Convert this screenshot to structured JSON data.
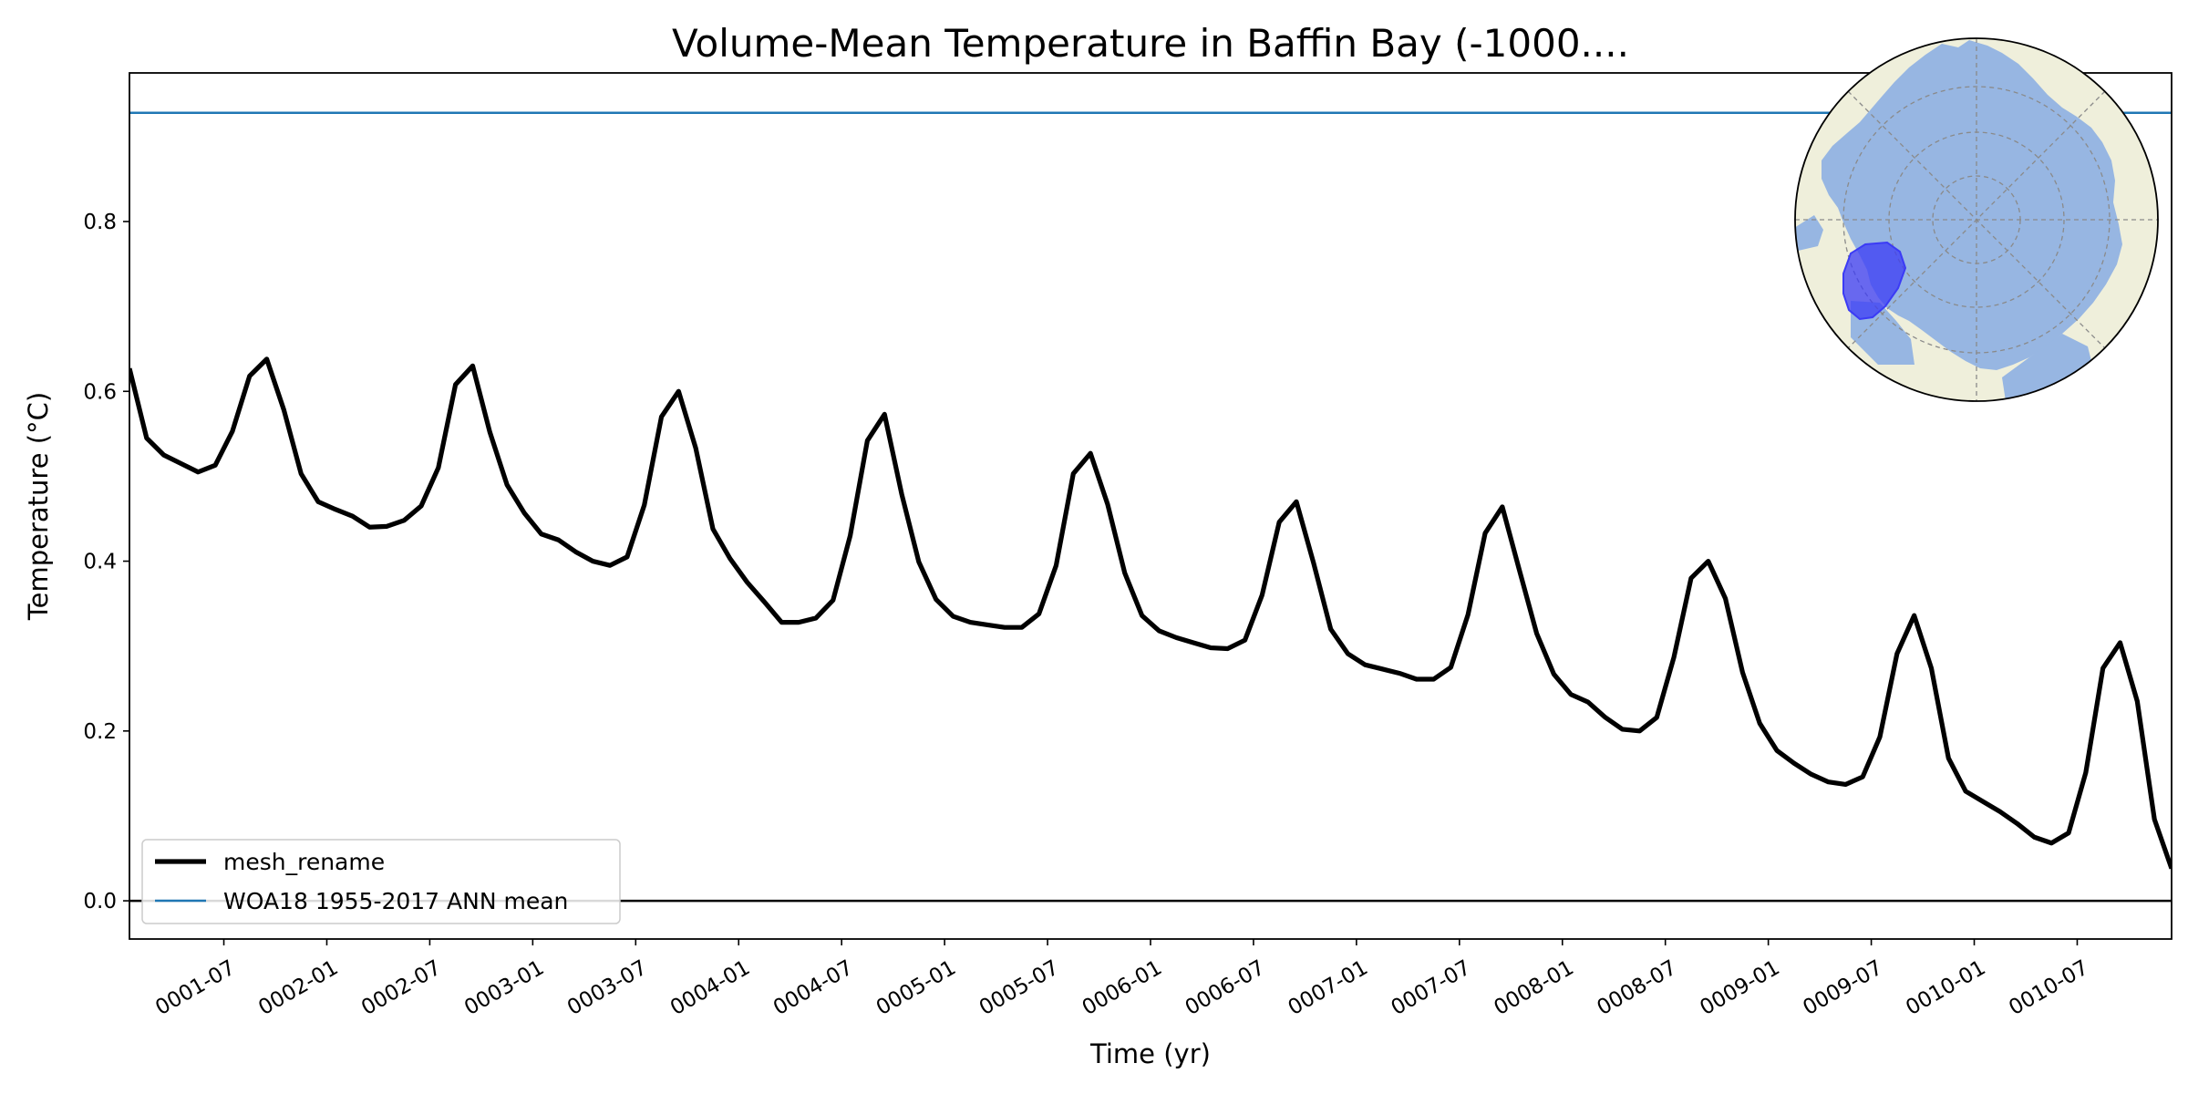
{
  "chart_data": {
    "type": "line",
    "title": "Volume-Mean Temperature in Baffin Bay (-1000....",
    "xlabel": "Time (yr)",
    "ylabel": "Temperature (°C)",
    "ylim": [
      -0.045,
      0.975
    ],
    "xlim": [
      0,
      119
    ],
    "yticks": [
      0.0,
      0.2,
      0.4,
      0.6,
      0.8
    ],
    "ytick_labels": [
      "0.0",
      "0.2",
      "0.4",
      "0.6",
      "0.8"
    ],
    "xticks": [
      5.5,
      11.5,
      17.5,
      23.5,
      29.5,
      35.5,
      41.5,
      47.5,
      53.5,
      59.5,
      65.5,
      71.5,
      77.5,
      83.5,
      89.5,
      95.5,
      101.5,
      107.5,
      113.5
    ],
    "xtick_labels": [
      "0001-07",
      "0002-01",
      "0002-07",
      "0003-01",
      "0003-07",
      "0004-01",
      "0004-07",
      "0005-01",
      "0005-07",
      "0006-01",
      "0006-07",
      "0007-01",
      "0007-07",
      "0008-01",
      "0008-07",
      "0009-01",
      "0009-07",
      "0010-01",
      "0010-07"
    ],
    "series": [
      {
        "name": "mesh_rename",
        "color": "#000000",
        "values": [
          0.627,
          0.545,
          0.525,
          0.515,
          0.505,
          0.513,
          0.553,
          0.618,
          0.638,
          0.578,
          0.503,
          0.47,
          0.461,
          0.453,
          0.44,
          0.441,
          0.448,
          0.465,
          0.51,
          0.608,
          0.63,
          0.552,
          0.49,
          0.457,
          0.432,
          0.425,
          0.411,
          0.4,
          0.395,
          0.405,
          0.466,
          0.57,
          0.6,
          0.533,
          0.438,
          0.403,
          0.375,
          0.352,
          0.328,
          0.328,
          0.333,
          0.354,
          0.43,
          0.542,
          0.573,
          0.479,
          0.399,
          0.355,
          0.335,
          0.328,
          0.325,
          0.322,
          0.322,
          0.338,
          0.395,
          0.503,
          0.527,
          0.467,
          0.386,
          0.336,
          0.318,
          0.31,
          0.304,
          0.298,
          0.297,
          0.307,
          0.36,
          0.446,
          0.47,
          0.398,
          0.32,
          0.291,
          0.278,
          0.273,
          0.268,
          0.261,
          0.261,
          0.275,
          0.337,
          0.433,
          0.464,
          0.389,
          0.315,
          0.267,
          0.243,
          0.234,
          0.216,
          0.202,
          0.2,
          0.216,
          0.287,
          0.38,
          0.4,
          0.356,
          0.269,
          0.209,
          0.177,
          0.162,
          0.149,
          0.14,
          0.137,
          0.146,
          0.193,
          0.291,
          0.336,
          0.274,
          0.168,
          0.129,
          0.117,
          0.105,
          0.091,
          0.075,
          0.068,
          0.08,
          0.151,
          0.274,
          0.304,
          0.235,
          0.096,
          0.038
        ]
      },
      {
        "name": "WOA18 1955-2017 ANN mean",
        "color": "#1f77b4",
        "constant": 0.928
      }
    ],
    "zero_line": 0.0,
    "legend_position": "lower-left",
    "inset": {
      "kind": "north-polar-map",
      "land_color": "#efefdb",
      "ocean_color": "#97b6e2",
      "region_color": "#3b3bf5",
      "grid": true
    }
  }
}
